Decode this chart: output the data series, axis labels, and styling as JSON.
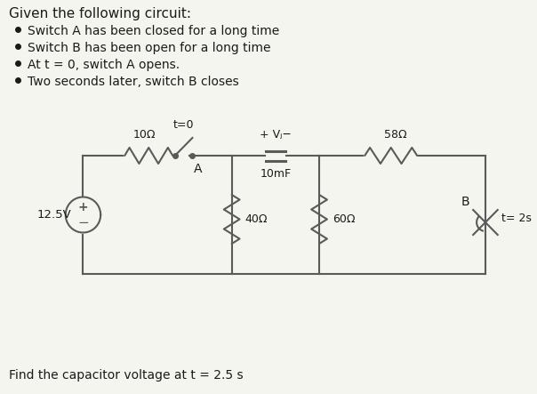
{
  "background_color": "#f5f5f0",
  "title_text": "Given the following circuit:",
  "bullet_points": [
    "Switch A has been closed for a long time",
    "Switch B has been open for a long time",
    "At t = 0, switch A opens.",
    "Two seconds later, switch B closes"
  ],
  "footer_text": "Find the capacitor voltage at t = 2.5 s",
  "circuit": {
    "source_voltage": "12.5V",
    "r10": "10Ω",
    "r40": "40Ω",
    "r60": "60Ω",
    "r58": "58Ω",
    "capacitor": "10mF",
    "switch_A_label": "A",
    "switch_A_time": "t=0",
    "switch_B_label": "B",
    "switch_B_time": "t= 2s",
    "cap_voltage_label": "+ Vⱼ-"
  },
  "line_color": "#5a5a5a",
  "text_color": "#1a1a1a",
  "font_size_title": 11,
  "font_size_bullets": 10,
  "font_size_footer": 10,
  "font_size_labels": 9
}
